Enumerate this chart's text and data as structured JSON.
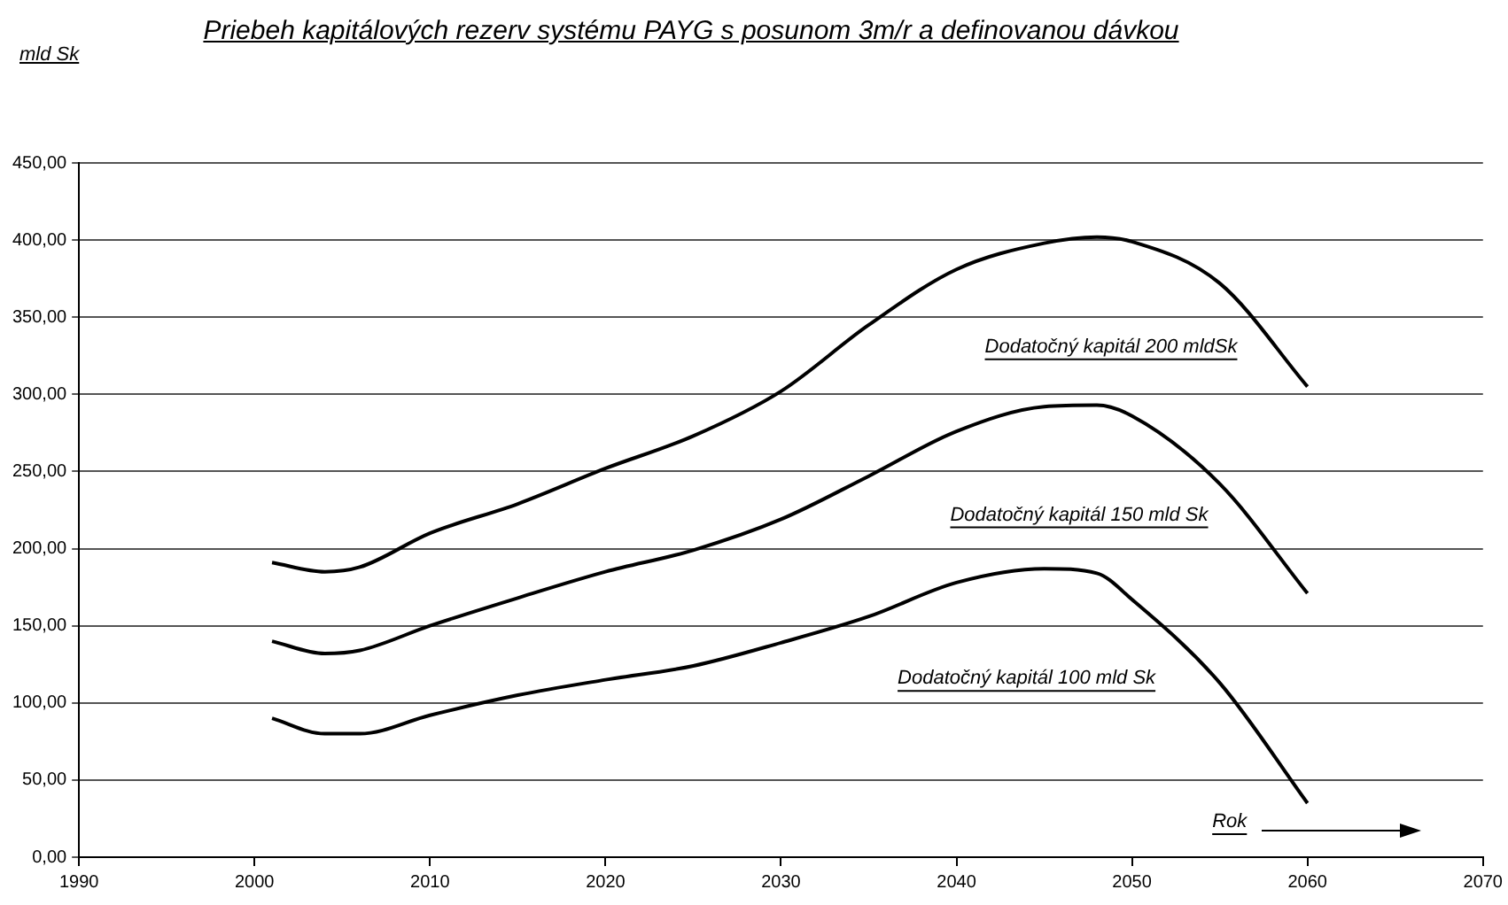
{
  "chart_data": {
    "type": "line",
    "title": "Priebeh kapitálových rezerv systému PAYG s posunom 3m/r a definovanou dávkou",
    "ylabel": "mld Sk",
    "xlim": [
      1990,
      2070
    ],
    "xticks": [
      1990,
      2000,
      2010,
      2020,
      2030,
      2040,
      2050,
      2060,
      2070
    ],
    "ylim": [
      0,
      450
    ],
    "yticks": [
      {
        "value": 0,
        "label": "0,00"
      },
      {
        "value": 50,
        "label": "50,00"
      },
      {
        "value": 100,
        "label": "100,00"
      },
      {
        "value": 150,
        "label": "150,00"
      },
      {
        "value": 200,
        "label": "200,00"
      },
      {
        "value": 250,
        "label": "250,00"
      },
      {
        "value": 300,
        "label": "300,00"
      },
      {
        "value": 350,
        "label": "350,00"
      },
      {
        "value": 400,
        "label": "400,00"
      },
      {
        "value": 450,
        "label": "450,00"
      }
    ],
    "grid": "y",
    "legend": false,
    "marker": "none",
    "line_style": "solid",
    "x": [
      2001,
      2004,
      2006,
      2010,
      2015,
      2020,
      2025,
      2030,
      2035,
      2040,
      2045,
      2048,
      2050,
      2055,
      2060
    ],
    "series": [
      {
        "name": "Dodatočný kapitál 200 mldSk",
        "color": "#000000",
        "values": [
          191,
          185,
          188,
          210,
          229,
          252,
          273,
          302,
          345,
          381,
          398,
          402,
          399,
          372,
          305
        ]
      },
      {
        "name": "Dodatočný kapitál 150 mld Sk",
        "color": "#000000",
        "values": [
          140,
          132,
          134,
          150,
          168,
          185,
          199,
          219,
          247,
          276,
          292,
          293,
          286,
          242,
          171
        ]
      },
      {
        "name": "Dodatočný kapitál 100 mld Sk",
        "color": "#000000",
        "values": [
          90,
          80,
          80,
          92,
          105,
          115,
          124,
          139,
          156,
          178,
          187,
          184,
          167,
          113,
          35
        ]
      }
    ],
    "xlabel": "Rok"
  }
}
